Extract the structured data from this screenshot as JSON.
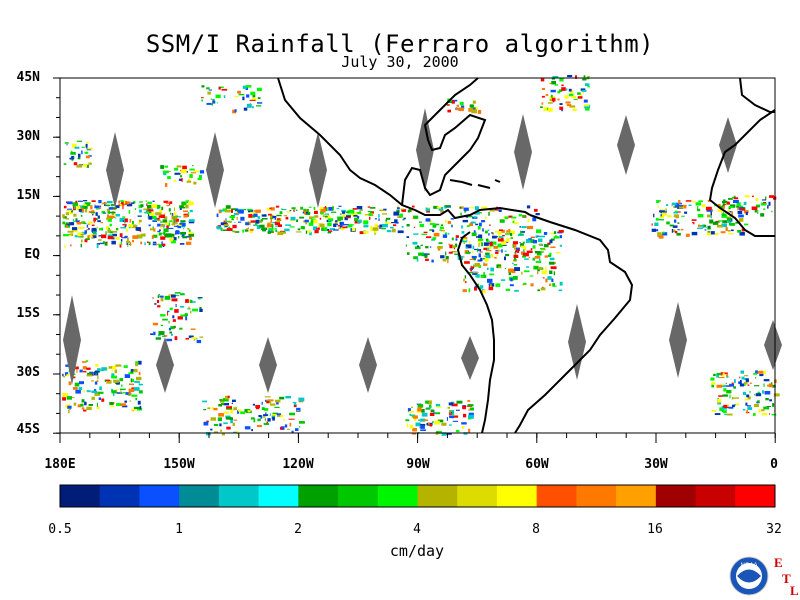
{
  "title": "SSM/I Rainfall (Ferraro algorithm)",
  "date": "July 30, 2000",
  "latitude_labels": [
    "45N",
    "30N",
    "15N",
    "EQ",
    "15S",
    "30S",
    "45S"
  ],
  "longitude_labels": [
    "180E",
    "150W",
    "120W",
    "90W",
    "60W",
    "30W",
    "0"
  ],
  "colorbar": {
    "tick_labels": [
      "0.5",
      "1",
      "2",
      "4",
      "8",
      "16",
      "32"
    ],
    "units": "cm/day",
    "colors": [
      "#001e78",
      "#0032b4",
      "#0a50ff",
      "#008c96",
      "#00c8c8",
      "#00ffff",
      "#00a000",
      "#00c800",
      "#00f500",
      "#b4b400",
      "#dcdc00",
      "#ffff00",
      "#ff5000",
      "#ff7800",
      "#ffa000",
      "#a00000",
      "#c80000",
      "#ff0000"
    ]
  },
  "logo": {
    "left_text": "NOAA",
    "letters": [
      "E",
      "T",
      "L"
    ]
  },
  "colors": {
    "land_outline": "#000000",
    "no_data": "#686868"
  }
}
